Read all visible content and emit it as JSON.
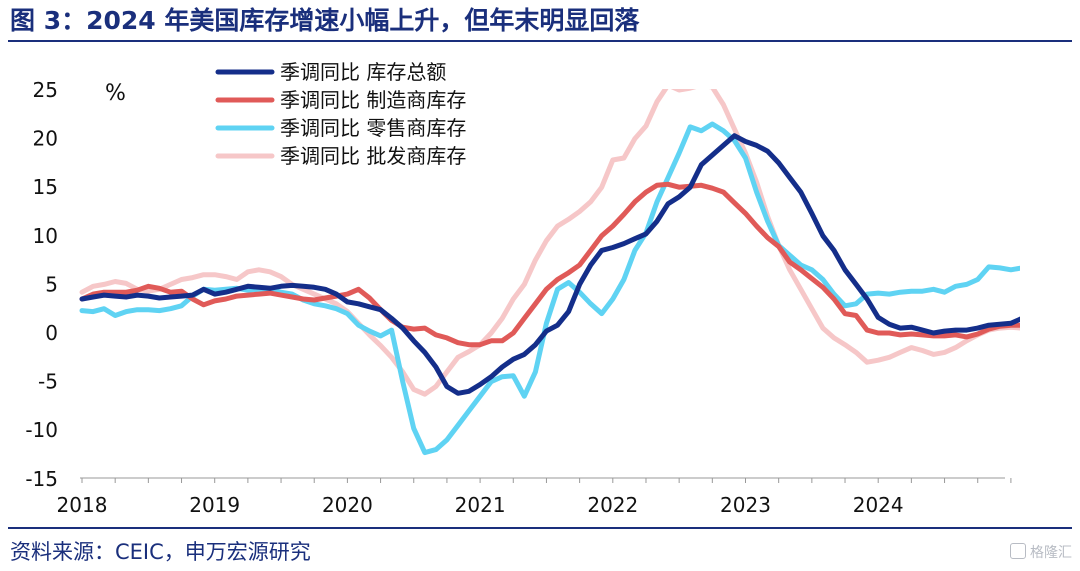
{
  "header": {
    "title": "图 3：2024 年美国库存增速小幅上升，但年末明显回落"
  },
  "footer": {
    "source": "资料来源：CEIC，申万宏源研究",
    "watermark": "格隆汇"
  },
  "chart_data": {
    "type": "line",
    "unit_label": "%",
    "ylim": [
      -15,
      25
    ],
    "y_ticks": [
      25,
      20,
      15,
      10,
      5,
      0,
      -5,
      -10,
      -15
    ],
    "x_ticks": [
      "2018",
      "2019",
      "2020",
      "2021",
      "2022",
      "2023",
      "2024"
    ],
    "legend_position": "top-center",
    "grid": false,
    "x_start": "2018-01",
    "series": [
      {
        "name": "季调同比 库存总额",
        "color": "#142e8a",
        "values": [
          3.5,
          3.7,
          3.9,
          3.8,
          3.7,
          3.9,
          3.8,
          3.6,
          3.7,
          3.8,
          3.9,
          4.5,
          4.0,
          4.2,
          4.5,
          4.8,
          4.7,
          4.6,
          4.8,
          4.9,
          4.8,
          4.7,
          4.5,
          4.0,
          3.2,
          3.0,
          2.7,
          2.4,
          1.5,
          0.5,
          -0.8,
          -2.0,
          -3.5,
          -5.5,
          -6.2,
          -6.0,
          -5.3,
          -4.5,
          -3.5,
          -2.7,
          -2.2,
          -1.2,
          0.2,
          0.8,
          2.2,
          5.0,
          7.0,
          8.5,
          8.8,
          9.2,
          9.7,
          10.2,
          11.5,
          13.3,
          14.0,
          15.0,
          17.3,
          18.3,
          19.3,
          20.3,
          19.7,
          19.3,
          18.7,
          17.5,
          16.0,
          14.5,
          12.3,
          10.0,
          8.5,
          6.5,
          5.0,
          3.5,
          1.6,
          0.9,
          0.5,
          0.6,
          0.3,
          0.0,
          0.2,
          0.3,
          0.3,
          0.5,
          0.8,
          0.9,
          1.0,
          1.5,
          2.0,
          2.5,
          2.5,
          2.2,
          2.4,
          2.6,
          2.0
        ]
      },
      {
        "name": "季调同比 制造商库存",
        "color": "#e05a58",
        "values": [
          3.5,
          4.0,
          4.2,
          4.2,
          4.2,
          4.4,
          4.8,
          4.6,
          4.2,
          4.3,
          3.5,
          2.9,
          3.3,
          3.5,
          3.8,
          3.9,
          4.0,
          4.1,
          3.9,
          3.7,
          3.5,
          3.4,
          3.6,
          3.8,
          4.0,
          4.5,
          3.6,
          2.4,
          1.3,
          0.6,
          0.4,
          0.5,
          -0.2,
          -0.5,
          -1.0,
          -1.2,
          -1.2,
          -0.8,
          -0.8,
          0.0,
          1.5,
          3.0,
          4.5,
          5.5,
          6.2,
          7.0,
          8.5,
          10.0,
          11.0,
          12.2,
          13.5,
          14.5,
          15.2,
          15.3,
          15.0,
          15.1,
          15.2,
          14.9,
          14.5,
          13.4,
          12.3,
          11.0,
          9.8,
          8.9,
          7.3,
          6.5,
          5.6,
          4.7,
          3.5,
          2.0,
          1.8,
          0.3,
          0.0,
          0.0,
          -0.2,
          -0.1,
          -0.2,
          -0.3,
          -0.3,
          -0.2,
          -0.4,
          -0.1,
          0.4,
          0.7,
          0.8,
          0.8,
          0.9,
          0.7,
          0.6,
          0.3,
          0.2,
          0.4,
          0.9
        ]
      },
      {
        "name": "季调同比 零售商库存",
        "color": "#5fd3f3",
        "values": [
          2.3,
          2.2,
          2.5,
          1.8,
          2.2,
          2.4,
          2.4,
          2.3,
          2.5,
          2.8,
          3.8,
          4.5,
          4.4,
          4.5,
          4.6,
          4.4,
          4.5,
          4.5,
          4.2,
          4.0,
          3.4,
          3.0,
          2.8,
          2.5,
          2.0,
          0.8,
          0.2,
          -0.3,
          0.3,
          -5.0,
          -9.8,
          -12.3,
          -12.0,
          -11.0,
          -9.5,
          -8.0,
          -6.5,
          -5.0,
          -4.5,
          -4.4,
          -6.5,
          -4.0,
          1.0,
          4.5,
          5.2,
          4.2,
          3.0,
          2.0,
          3.5,
          5.5,
          8.5,
          10.3,
          13.5,
          16.0,
          18.5,
          21.2,
          20.8,
          21.5,
          20.8,
          19.8,
          18.0,
          14.5,
          11.5,
          9.0,
          8.0,
          7.0,
          6.5,
          5.5,
          4.0,
          2.8,
          3.0,
          4.0,
          4.1,
          4.0,
          4.2,
          4.3,
          4.3,
          4.5,
          4.2,
          4.8,
          5.0,
          5.5,
          6.8,
          6.7,
          6.5,
          6.7,
          7.0,
          5.5
        ]
      },
      {
        "name": "季调同比 批发商库存",
        "color": "#f6c7c8",
        "values": [
          4.2,
          4.8,
          5.0,
          5.3,
          5.1,
          4.5,
          4.3,
          4.5,
          5.0,
          5.5,
          5.7,
          6.0,
          6.0,
          5.8,
          5.5,
          6.3,
          6.5,
          6.3,
          5.8,
          5.0,
          4.5,
          4.0,
          3.5,
          3.0,
          2.2,
          1.0,
          -0.2,
          -1.3,
          -2.5,
          -4.0,
          -5.8,
          -6.3,
          -5.5,
          -4.0,
          -2.5,
          -1.9,
          -1.2,
          0.0,
          1.5,
          3.5,
          5.0,
          7.5,
          9.5,
          11.0,
          11.7,
          12.5,
          13.5,
          15.0,
          17.8,
          18.0,
          20.0,
          21.3,
          23.8,
          25.5,
          25.0,
          25.2,
          25.5,
          25.3,
          23.5,
          21.0,
          18.5,
          15.5,
          12.0,
          9.0,
          6.5,
          4.5,
          2.5,
          0.5,
          -0.5,
          -1.2,
          -2.0,
          -3.0,
          -2.8,
          -2.5,
          -2.0,
          -1.5,
          -1.8,
          -2.2,
          -2.0,
          -1.5,
          -0.8,
          -0.2,
          0.3,
          0.5,
          0.6,
          0.5,
          0.4,
          0.3,
          0.0
        ]
      }
    ]
  }
}
